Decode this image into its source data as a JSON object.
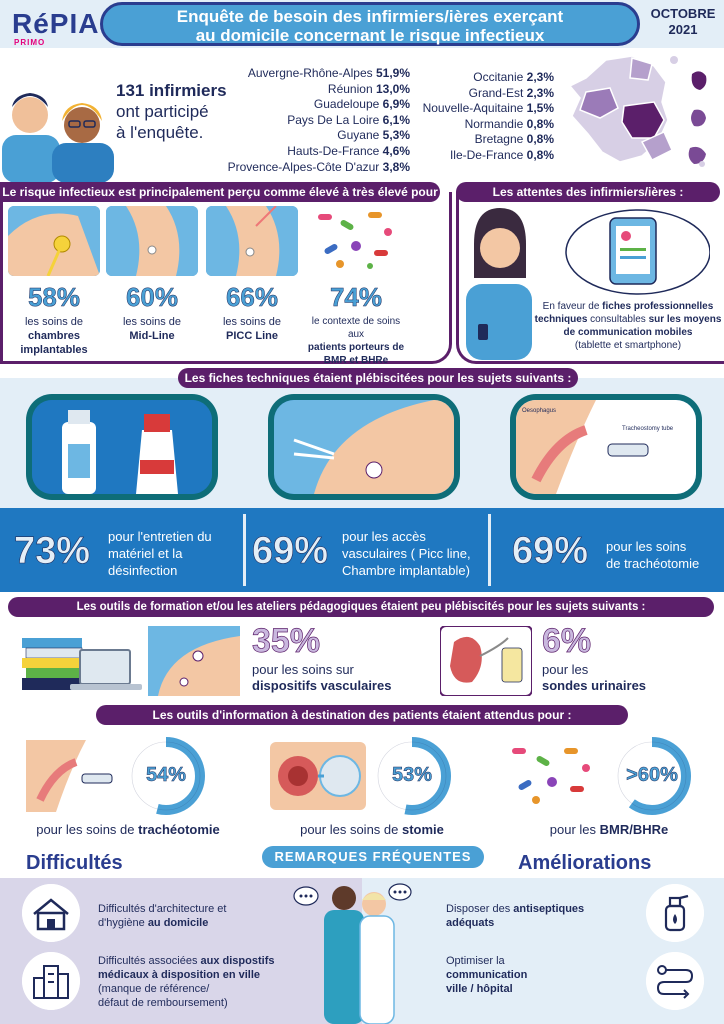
{
  "header": {
    "logo": "RéPIAS",
    "logo_sub": "PRIMO",
    "title_line1": "Enquête de besoin des infirmiers/ières exerçant",
    "title_line2": "au domicile concernant le risque infectieux",
    "month": "OCTOBRE",
    "year": "2021"
  },
  "participation": {
    "count": "131 infirmiers",
    "line2": "ont participé",
    "line3": "à l'enquête.",
    "regions_left": [
      {
        "name": "Auvergne-Rhône-Alpes",
        "value": "51,9%"
      },
      {
        "name": "Réunion",
        "value": "13,0%"
      },
      {
        "name": "Guadeloupe",
        "value": "6,9%"
      },
      {
        "name": "Pays De La Loire",
        "value": "6,1%"
      },
      {
        "name": "Guyane",
        "value": "5,3%"
      },
      {
        "name": "Hauts-De-France",
        "value": "4,6%"
      },
      {
        "name": "Provence-Alpes-Côte D'azur",
        "value": "3,8%"
      }
    ],
    "regions_right": [
      {
        "name": "Occitanie",
        "value": "2,3%"
      },
      {
        "name": "Grand-Est",
        "value": "2,3%"
      },
      {
        "name": "Nouvelle-Aquitaine",
        "value": "1,5%"
      },
      {
        "name": "Normandie",
        "value": "0,8%"
      },
      {
        "name": "Bretagne",
        "value": "0,8%"
      },
      {
        "name": "Ile-De-France",
        "value": "0,8%"
      }
    ]
  },
  "risk": {
    "header": "Le risque infectieux est principalement perçu comme élevé à très élevé pour :",
    "items": [
      {
        "pct": "58%",
        "line1": "les soins de",
        "line2": "chambres",
        "line3": "implantables"
      },
      {
        "pct": "60%",
        "line1": "les soins de",
        "line2": "Mid-Line",
        "line3": ""
      },
      {
        "pct": "66%",
        "line1": "les soins de",
        "line2": "PICC Line",
        "line3": ""
      },
      {
        "pct": "74%",
        "line1": "le contexte de soins aux",
        "line2": "patients porteurs de",
        "line3": "BMR et BHRe"
      }
    ]
  },
  "attentes": {
    "header": "Les attentes des infirmiers/ières :",
    "text_a": "En faveur de ",
    "text_b": "fiches professionnelles techniques",
    "text_c": " consultables ",
    "text_d": "sur les moyens de communication mobiles",
    "text_e": "(tablette et smartphone)"
  },
  "fiches": {
    "header": "Les fiches techniques étaient plébiscitées pour les sujets suivants :",
    "items": [
      {
        "pct": "73%",
        "line1": "pour l'entretien du",
        "line2": "matériel et la",
        "line3": "désinfection"
      },
      {
        "pct": "69%",
        "line1": "pour les accès",
        "line2": "vasculaires ( Picc line,",
        "line3": "Chambre implantable)"
      },
      {
        "pct": "69%",
        "line1": "pour les soins",
        "line2": "de trachéotomie",
        "line3": ""
      }
    ],
    "image_labels": {
      "oesophagus": "Oesophagus",
      "trach": "Tracheostomy tube"
    }
  },
  "formation": {
    "header": "Les outils de formation et/ou les ateliers pédagogiques étaient peu plébiscités pour les sujets suivants :",
    "items": [
      {
        "pct": "35%",
        "line1": "pour les soins sur",
        "line2": "dispositifs vasculaires"
      },
      {
        "pct": "6%",
        "line1": "pour les",
        "line2": "sondes urinaires"
      }
    ]
  },
  "information": {
    "header": "Les outils d'information à destination des patients étaient attendus pour :",
    "items": [
      {
        "pct": "54%",
        "value": 54,
        "prefix": "pour les soins de ",
        "bold": "trachéotomie"
      },
      {
        "pct": "53%",
        "value": 53,
        "prefix": "pour les soins de ",
        "bold": "stomie"
      },
      {
        "pct": ">60%",
        "value": 60,
        "prefix": "pour les ",
        "bold": "BMR/BHRe"
      }
    ]
  },
  "remarques": {
    "pill": "REMARQUES FRÉQUENTES",
    "difficultes_title": "Difficultés",
    "ameliorations_title": "Améliorations",
    "difficultes": [
      {
        "line1": "Difficultés d'architecture et",
        "line2_a": "d'hygiène ",
        "line2_b": "au domicile",
        "line3": "",
        "line4": ""
      },
      {
        "line1": "Difficultés associées ",
        "line1_b": "aux dispostifs",
        "line2_b": "médicaux à disposition en ville",
        "line3": "(manque de référence/",
        "line4": "défaut de remboursement)"
      }
    ],
    "ameliorations": [
      {
        "line1": "Disposer des ",
        "line1_b": "antiseptiques",
        "line2_b": "adéquats"
      },
      {
        "line1": "Optimiser la",
        "line2_b": "communication",
        "line3_b": "ville / hôpital"
      }
    ]
  },
  "colors": {
    "purple": "#5b1f6a",
    "blue": "#4aa0d5",
    "navy": "#2a3d8f",
    "teal": "#0e6d78",
    "light": "#e3eef7"
  }
}
